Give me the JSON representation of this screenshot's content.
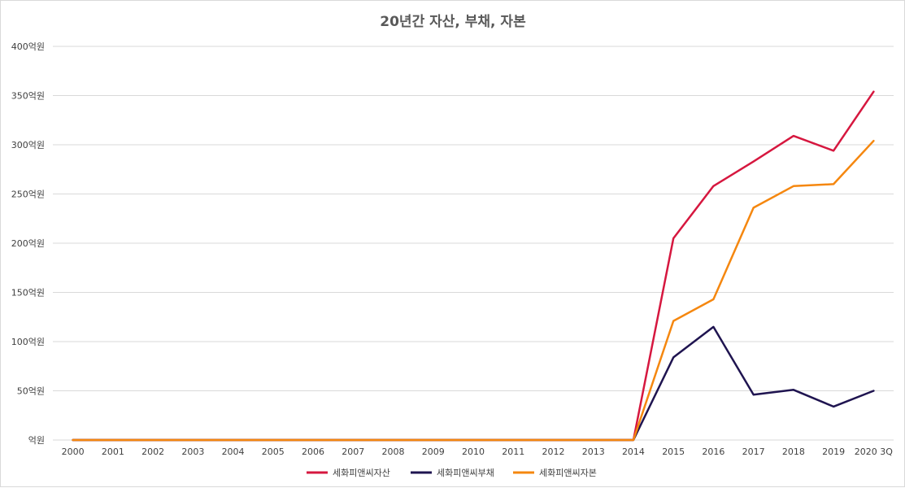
{
  "chart_data": {
    "type": "line",
    "title": "20년간 자산, 부채, 자본",
    "xlabel": "",
    "ylabel": "",
    "ylim": [
      0,
      400
    ],
    "y_ticks": [
      0,
      50,
      100,
      150,
      200,
      250,
      300,
      350,
      400
    ],
    "y_tick_labels": [
      "억원",
      "50억원",
      "100억원",
      "150억원",
      "200억원",
      "250억원",
      "300억원",
      "350억원",
      "400억원"
    ],
    "categories": [
      "2000",
      "2001",
      "2002",
      "2003",
      "2004",
      "2005",
      "2006",
      "2007",
      "2008",
      "2009",
      "2010",
      "2011",
      "2012",
      "2013",
      "2014",
      "2015",
      "2016",
      "2017",
      "2018",
      "2019",
      "2020 3Q"
    ],
    "series": [
      {
        "name": "세화피앤씨자산",
        "color": "#d6173f",
        "values": [
          0,
          0,
          0,
          0,
          0,
          0,
          0,
          0,
          0,
          0,
          0,
          0,
          0,
          0,
          0,
          205,
          258,
          283,
          309,
          294,
          354
        ]
      },
      {
        "name": "세화피앤씨부채",
        "color": "#1f1450",
        "values": [
          0,
          0,
          0,
          0,
          0,
          0,
          0,
          0,
          0,
          0,
          0,
          0,
          0,
          0,
          0,
          84,
          115,
          46,
          51,
          34,
          50
        ]
      },
      {
        "name": "세화피앤씨자본",
        "color": "#f5870f",
        "values": [
          0,
          0,
          0,
          0,
          0,
          0,
          0,
          0,
          0,
          0,
          0,
          0,
          0,
          0,
          0,
          121,
          143,
          236,
          258,
          260,
          304
        ]
      }
    ],
    "grid": true,
    "legend_position": "bottom"
  }
}
